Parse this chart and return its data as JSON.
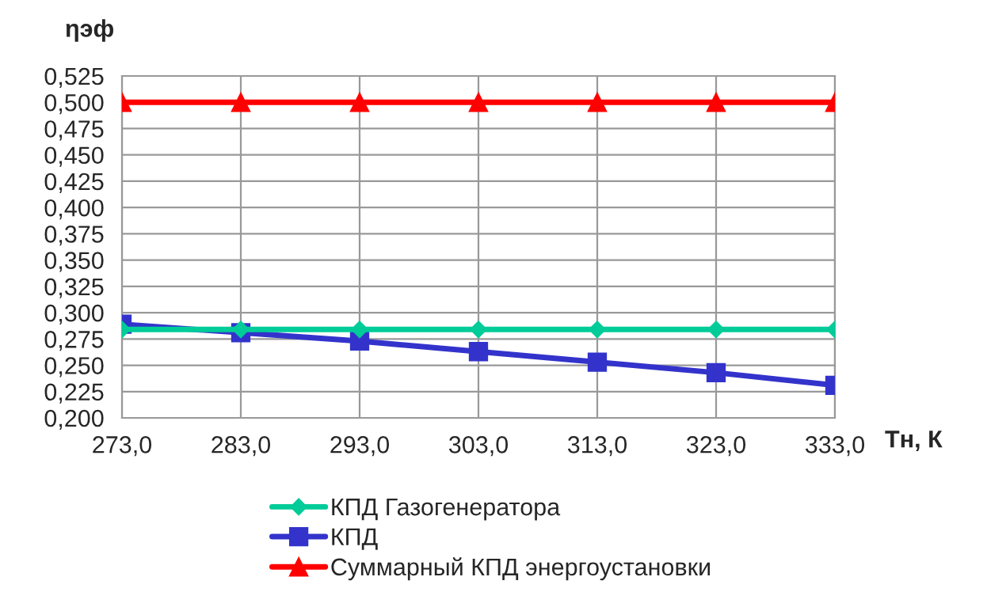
{
  "chart_data": {
    "type": "line",
    "xlabel": "Тн, К",
    "ylabel": "ηэф",
    "x": [
      273,
      283,
      293,
      303,
      313,
      323,
      333
    ],
    "series": [
      {
        "name": "КПД Газогенератора",
        "color": "#00cc99",
        "marker": "diamond",
        "values": [
          0.284,
          0.284,
          0.284,
          0.284,
          0.284,
          0.284,
          0.284
        ]
      },
      {
        "name": "КПД",
        "color": "#3333cc",
        "marker": "square",
        "values": [
          0.289,
          0.281,
          0.273,
          0.263,
          0.253,
          0.243,
          0.231
        ]
      },
      {
        "name": "Суммарный КПД энергоустановки",
        "color": "#ff0000",
        "marker": "triangle",
        "values": [
          0.5,
          0.5,
          0.5,
          0.5,
          0.5,
          0.5,
          0.5
        ]
      }
    ],
    "xlim": [
      273,
      333
    ],
    "xticks": [
      {
        "value": 273,
        "label": "273,0"
      },
      {
        "value": 283,
        "label": "283,0"
      },
      {
        "value": 293,
        "label": "293,0"
      },
      {
        "value": 303,
        "label": "303,0"
      },
      {
        "value": 313,
        "label": "313,0"
      },
      {
        "value": 323,
        "label": "323,0"
      },
      {
        "value": 333,
        "label": "333,0"
      }
    ],
    "ylim": [
      0.2,
      0.525
    ],
    "yticks": [
      {
        "value": 0.2,
        "label": "0,200"
      },
      {
        "value": 0.225,
        "label": "0,225"
      },
      {
        "value": 0.25,
        "label": "0,250"
      },
      {
        "value": 0.275,
        "label": "0,275"
      },
      {
        "value": 0.3,
        "label": "0,300"
      },
      {
        "value": 0.325,
        "label": "0,325"
      },
      {
        "value": 0.35,
        "label": "0,350"
      },
      {
        "value": 0.375,
        "label": "0,375"
      },
      {
        "value": 0.4,
        "label": "0,400"
      },
      {
        "value": 0.425,
        "label": "0,425"
      },
      {
        "value": 0.45,
        "label": "0,450"
      },
      {
        "value": 0.475,
        "label": "0,475"
      },
      {
        "value": 0.5,
        "label": "0,500"
      },
      {
        "value": 0.525,
        "label": "0,525"
      }
    ],
    "grid": true,
    "legend": "bottom",
    "line_style": "solid"
  }
}
